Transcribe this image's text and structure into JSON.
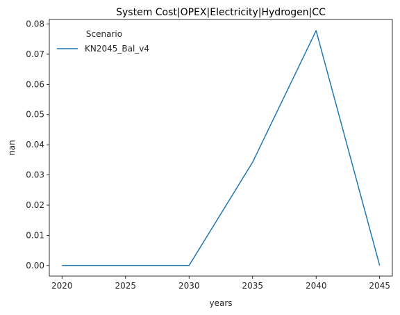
{
  "chart_data": {
    "type": "line",
    "title": "System Cost|OPEX|Electricity|Hydrogen|CC",
    "xlabel": "years",
    "ylabel": "nan",
    "x": [
      2020,
      2025,
      2030,
      2035,
      2040,
      2045
    ],
    "series": [
      {
        "name": "KN2045_Bal_v4",
        "color": "#1f77b4",
        "values": [
          0.0,
          0.0,
          0.0,
          0.0342,
          0.0778,
          0.0
        ]
      }
    ],
    "xticks": [
      2020,
      2025,
      2030,
      2035,
      2040,
      2045
    ],
    "yticks": [
      0.0,
      0.01,
      0.02,
      0.03,
      0.04,
      0.05,
      0.06,
      0.07,
      0.08
    ],
    "ytick_labels": [
      "0.00",
      "0.01",
      "0.02",
      "0.03",
      "0.04",
      "0.05",
      "0.06",
      "0.07",
      "0.08"
    ],
    "xlim": [
      2019,
      2046
    ],
    "ylim": [
      -0.0035,
      0.0815
    ],
    "grid": false,
    "legend": {
      "title": "Scenario",
      "placement": "upper-left"
    }
  }
}
